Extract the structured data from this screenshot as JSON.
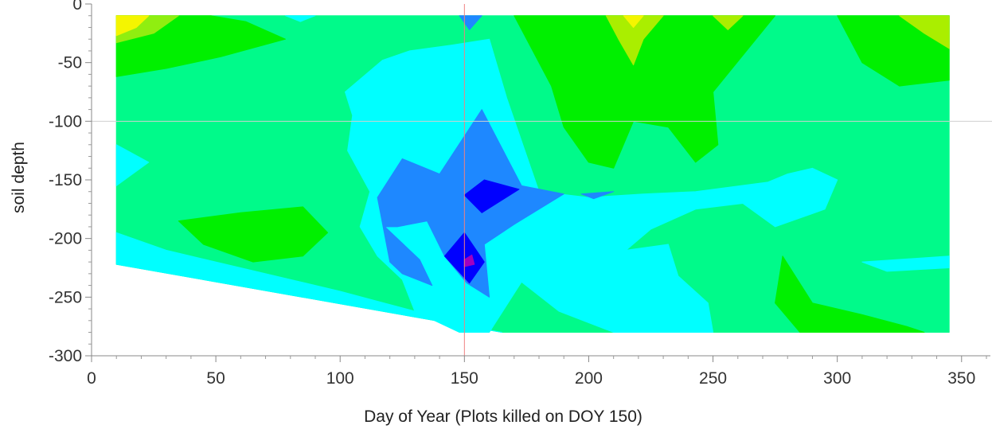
{
  "chart_data": {
    "type": "heatmap",
    "subtype": "filled-contour",
    "title": "",
    "xlabel": "Day of Year (Plots killed on DOY 150)",
    "ylabel": "soil depth",
    "xlim": [
      0,
      360
    ],
    "ylim": [
      -300,
      0
    ],
    "x_ticks": [
      0,
      50,
      100,
      150,
      200,
      250,
      300,
      350
    ],
    "y_ticks": [
      0,
      -50,
      -100,
      -150,
      -200,
      -250,
      -300
    ],
    "grid": false,
    "legend": "none",
    "reference_lines": [
      {
        "axis": "x",
        "value": 150,
        "color": "#f08080"
      },
      {
        "axis": "y",
        "value": -100,
        "color": "#d0d0d0"
      }
    ],
    "data_extent": {
      "x": [
        10,
        345
      ],
      "y": [
        -280,
        -10
      ]
    },
    "regions": [
      {
        "name": "base",
        "color": "#00fa8a",
        "points": [
          [
            10,
            -10
          ],
          [
            345,
            -10
          ],
          [
            345,
            -280
          ],
          [
            165,
            -280
          ],
          [
            10,
            -222
          ]
        ]
      },
      {
        "name": "cyan-bottom-left",
        "color": "#00ffff",
        "points": [
          [
            10,
            -195
          ],
          [
            30,
            -210
          ],
          [
            60,
            -225
          ],
          [
            80,
            -235
          ],
          [
            100,
            -245
          ],
          [
            130,
            -262
          ],
          [
            160,
            -278
          ],
          [
            165,
            -280
          ],
          [
            10,
            -222
          ]
        ]
      },
      {
        "name": "cyan-left-notch",
        "color": "#00ffff",
        "points": [
          [
            10,
            -120
          ],
          [
            23,
            -135
          ],
          [
            10,
            -155
          ]
        ]
      },
      {
        "name": "cyan-central",
        "color": "#00ffff",
        "points": [
          [
            128,
            -40
          ],
          [
            145,
            -35
          ],
          [
            160,
            -30
          ],
          [
            167,
            -80
          ],
          [
            180,
            -160
          ],
          [
            200,
            -165
          ],
          [
            222,
            -162
          ],
          [
            243,
            -160
          ],
          [
            272,
            -152
          ],
          [
            280,
            -145
          ],
          [
            290,
            -140
          ],
          [
            300,
            -150
          ],
          [
            295,
            -175
          ],
          [
            275,
            -190
          ],
          [
            262,
            -170
          ],
          [
            243,
            -175
          ],
          [
            225,
            -192
          ],
          [
            215,
            -210
          ],
          [
            232,
            -205
          ],
          [
            236,
            -232
          ],
          [
            248,
            -255
          ],
          [
            250,
            -280
          ],
          [
            210,
            -280
          ],
          [
            188,
            -262
          ],
          [
            173,
            -237
          ],
          [
            160,
            -280
          ],
          [
            148,
            -280
          ],
          [
            130,
            -262
          ],
          [
            125,
            -235
          ],
          [
            115,
            -215
          ],
          [
            108,
            -190
          ],
          [
            112,
            -160
          ],
          [
            103,
            -125
          ],
          [
            105,
            -95
          ],
          [
            102,
            -75
          ],
          [
            117,
            -48
          ]
        ]
      },
      {
        "name": "cyan-bottom-right-strip",
        "color": "#00ffff",
        "points": [
          [
            310,
            -220
          ],
          [
            345,
            -215
          ],
          [
            345,
            -225
          ],
          [
            320,
            -228
          ]
        ]
      },
      {
        "name": "cyan-top-notch",
        "color": "#00ffff",
        "points": [
          [
            78,
            -10
          ],
          [
            90,
            -10
          ],
          [
            84,
            -15
          ]
        ]
      },
      {
        "name": "green-top-left",
        "color": "#00f000",
        "points": [
          [
            10,
            -10
          ],
          [
            48,
            -10
          ],
          [
            62,
            -15
          ],
          [
            78,
            -30
          ],
          [
            52,
            -45
          ],
          [
            30,
            -55
          ],
          [
            10,
            -62
          ]
        ]
      },
      {
        "name": "green-left-band",
        "color": "#00f000",
        "points": [
          [
            35,
            -185
          ],
          [
            60,
            -178
          ],
          [
            85,
            -173
          ],
          [
            95,
            -195
          ],
          [
            85,
            -215
          ],
          [
            65,
            -220
          ],
          [
            45,
            -205
          ]
        ]
      },
      {
        "name": "green-top-right",
        "color": "#00f000",
        "points": [
          [
            170,
            -10
          ],
          [
            275,
            -10
          ],
          [
            250,
            -75
          ],
          [
            252,
            -120
          ],
          [
            243,
            -135
          ],
          [
            232,
            -105
          ],
          [
            218,
            -100
          ],
          [
            210,
            -140
          ],
          [
            200,
            -135
          ],
          [
            190,
            -105
          ],
          [
            185,
            -70
          ]
        ]
      },
      {
        "name": "green-far-right",
        "color": "#00f000",
        "points": [
          [
            300,
            -10
          ],
          [
            345,
            -10
          ],
          [
            345,
            -65
          ],
          [
            325,
            -70
          ],
          [
            310,
            -50
          ]
        ]
      },
      {
        "name": "green-bottom-right",
        "color": "#00f000",
        "points": [
          [
            278,
            -215
          ],
          [
            290,
            -255
          ],
          [
            310,
            -265
          ],
          [
            328,
            -275
          ],
          [
            335,
            -280
          ],
          [
            285,
            -280
          ],
          [
            275,
            -255
          ]
        ]
      },
      {
        "name": "yellowgreen-top-left",
        "color": "#90ee10",
        "points": [
          [
            10,
            -10
          ],
          [
            35,
            -10
          ],
          [
            25,
            -25
          ],
          [
            10,
            -33
          ]
        ]
      },
      {
        "name": "yellowgreen-top-mid",
        "color": "#aaee00",
        "points": [
          [
            207,
            -10
          ],
          [
            230,
            -10
          ],
          [
            222,
            -30
          ],
          [
            218,
            -52
          ],
          [
            212,
            -30
          ]
        ]
      },
      {
        "name": "yellowgreen-top-mid2",
        "color": "#aaee00",
        "points": [
          [
            250,
            -10
          ],
          [
            262,
            -10
          ],
          [
            256,
            -22
          ]
        ]
      },
      {
        "name": "yellowgreen-top-right",
        "color": "#aaee00",
        "points": [
          [
            325,
            -10
          ],
          [
            345,
            -10
          ],
          [
            345,
            -38
          ],
          [
            335,
            -25
          ]
        ]
      },
      {
        "name": "yellow-top-left",
        "color": "#f5f500",
        "points": [
          [
            10,
            -10
          ],
          [
            23,
            -10
          ],
          [
            18,
            -20
          ],
          [
            10,
            -27
          ]
        ]
      },
      {
        "name": "yellow-top-mid",
        "color": "#f5f500",
        "points": [
          [
            214,
            -10
          ],
          [
            222,
            -10
          ],
          [
            218,
            -20
          ]
        ]
      },
      {
        "name": "blue-mid",
        "color": "#1e88ff",
        "points": [
          [
            157,
            -90
          ],
          [
            173,
            -155
          ],
          [
            190,
            -162
          ],
          [
            170,
            -188
          ],
          [
            158,
            -205
          ],
          [
            160,
            -250
          ],
          [
            151,
            -238
          ],
          [
            142,
            -215
          ],
          [
            135,
            -185
          ],
          [
            123,
            -190
          ],
          [
            118,
            -190
          ],
          [
            132,
            -218
          ],
          [
            137,
            -240
          ],
          [
            125,
            -230
          ],
          [
            120,
            -220
          ],
          [
            115,
            -165
          ],
          [
            125,
            -132
          ],
          [
            140,
            -145
          ]
        ]
      },
      {
        "name": "blue-top-notch",
        "color": "#1e88ff",
        "points": [
          [
            148,
            -10
          ],
          [
            157,
            -10
          ],
          [
            152,
            -22
          ]
        ]
      },
      {
        "name": "blue-small-right",
        "color": "#1e88ff",
        "points": [
          [
            197,
            -162
          ],
          [
            210,
            -160
          ],
          [
            202,
            -166
          ]
        ]
      },
      {
        "name": "darkblue-top",
        "color": "#0000ff",
        "points": [
          [
            150,
            -163
          ],
          [
            158,
            -150
          ],
          [
            172,
            -158
          ],
          [
            157,
            -178
          ]
        ]
      },
      {
        "name": "darkblue-bottom",
        "color": "#0000ff",
        "points": [
          [
            142,
            -215
          ],
          [
            150,
            -195
          ],
          [
            158,
            -220
          ],
          [
            152,
            -238
          ]
        ]
      },
      {
        "name": "magenta-core",
        "color": "#a000c0",
        "points": [
          [
            150,
            -218
          ],
          [
            153,
            -214
          ],
          [
            154,
            -222
          ],
          [
            150,
            -224
          ]
        ]
      }
    ]
  }
}
